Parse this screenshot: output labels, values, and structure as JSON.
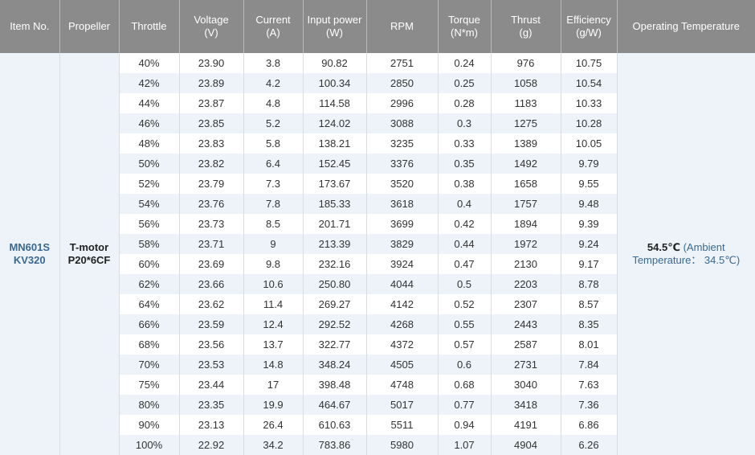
{
  "headers": [
    {
      "label": "Item No.",
      "unit": ""
    },
    {
      "label": "Propeller",
      "unit": ""
    },
    {
      "label": "Throttle",
      "unit": ""
    },
    {
      "label": "Voltage",
      "unit": "(V)"
    },
    {
      "label": "Current",
      "unit": "(A)"
    },
    {
      "label": "Input power",
      "unit": "(W)"
    },
    {
      "label": "RPM",
      "unit": ""
    },
    {
      "label": "Torque",
      "unit": "(N*m)"
    },
    {
      "label": "Thrust",
      "unit": "(g)"
    },
    {
      "label": "Efficiency",
      "unit": "(g/W)"
    },
    {
      "label": "Operating Temperature",
      "unit": ""
    }
  ],
  "item": {
    "line1": "MN601S",
    "line2": "KV320"
  },
  "propeller": {
    "line1": "T-motor",
    "line2": "P20*6CF"
  },
  "temperature": {
    "value": "54.5℃",
    "note": " (Ambient Temperature： 34.5℃)"
  },
  "rows": [
    [
      "40%",
      "23.90",
      "3.8",
      "90.82",
      "2751",
      "0.24",
      "976",
      "10.75"
    ],
    [
      "42%",
      "23.89",
      "4.2",
      "100.34",
      "2850",
      "0.25",
      "1058",
      "10.54"
    ],
    [
      "44%",
      "23.87",
      "4.8",
      "114.58",
      "2996",
      "0.28",
      "1183",
      "10.33"
    ],
    [
      "46%",
      "23.85",
      "5.2",
      "124.02",
      "3088",
      "0.3",
      "1275",
      "10.28"
    ],
    [
      "48%",
      "23.83",
      "5.8",
      "138.21",
      "3235",
      "0.33",
      "1389",
      "10.05"
    ],
    [
      "50%",
      "23.82",
      "6.4",
      "152.45",
      "3376",
      "0.35",
      "1492",
      "9.79"
    ],
    [
      "52%",
      "23.79",
      "7.3",
      "173.67",
      "3520",
      "0.38",
      "1658",
      "9.55"
    ],
    [
      "54%",
      "23.76",
      "7.8",
      "185.33",
      "3618",
      "0.4",
      "1757",
      "9.48"
    ],
    [
      "56%",
      "23.73",
      "8.5",
      "201.71",
      "3699",
      "0.42",
      "1894",
      "9.39"
    ],
    [
      "58%",
      "23.71",
      "9",
      "213.39",
      "3829",
      "0.44",
      "1972",
      "9.24"
    ],
    [
      "60%",
      "23.69",
      "9.8",
      "232.16",
      "3924",
      "0.47",
      "2130",
      "9.17"
    ],
    [
      "62%",
      "23.66",
      "10.6",
      "250.80",
      "4044",
      "0.5",
      "2203",
      "8.78"
    ],
    [
      "64%",
      "23.62",
      "11.4",
      "269.27",
      "4142",
      "0.52",
      "2307",
      "8.57"
    ],
    [
      "66%",
      "23.59",
      "12.4",
      "292.52",
      "4268",
      "0.55",
      "2443",
      "8.35"
    ],
    [
      "68%",
      "23.56",
      "13.7",
      "322.77",
      "4372",
      "0.57",
      "2587",
      "8.01"
    ],
    [
      "70%",
      "23.53",
      "14.8",
      "348.24",
      "4505",
      "0.6",
      "2731",
      "7.84"
    ],
    [
      "75%",
      "23.44",
      "17",
      "398.48",
      "4748",
      "0.68",
      "3040",
      "7.63"
    ],
    [
      "80%",
      "23.35",
      "19.9",
      "464.67",
      "5017",
      "0.77",
      "3418",
      "7.36"
    ],
    [
      "90%",
      "23.13",
      "26.4",
      "610.63",
      "5511",
      "0.94",
      "4191",
      "6.86"
    ],
    [
      "100%",
      "22.92",
      "34.2",
      "783.86",
      "5980",
      "1.07",
      "4904",
      "6.26"
    ]
  ]
}
